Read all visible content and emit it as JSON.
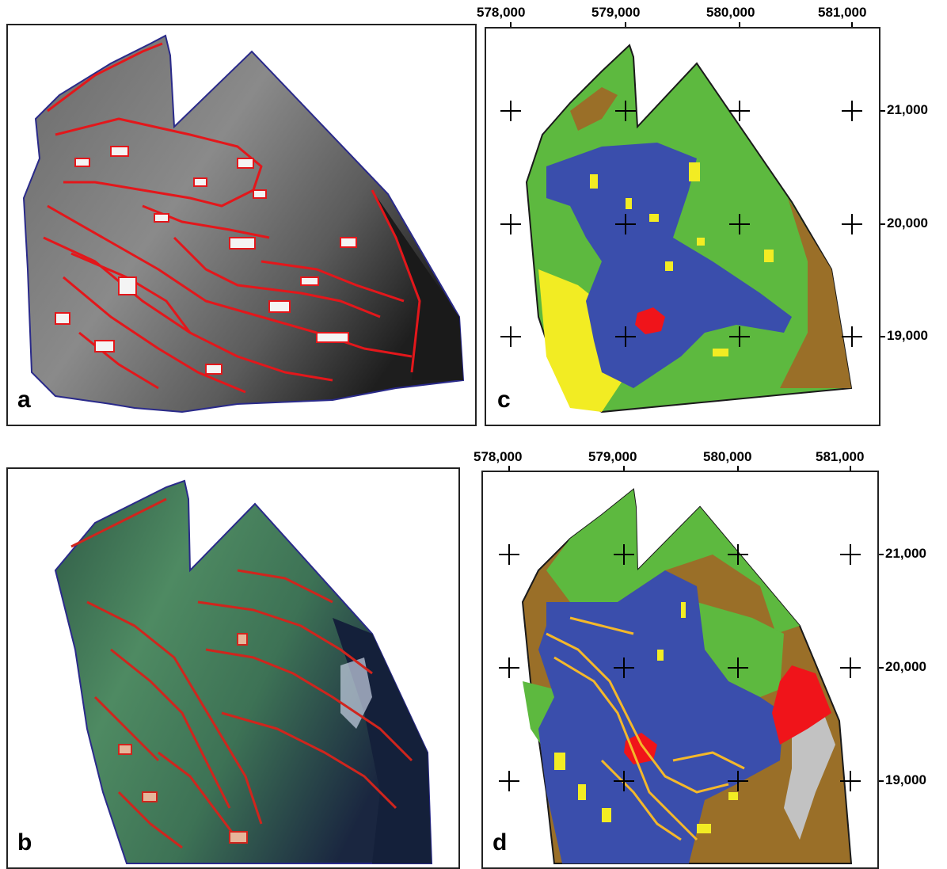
{
  "panels": {
    "a": {
      "letter": "a"
    },
    "b": {
      "letter": "b"
    },
    "c": {
      "letter": "c"
    },
    "d": {
      "letter": "d"
    }
  },
  "grid_labels": {
    "eastings": [
      "578,000",
      "579,000",
      "580,000",
      "581,000"
    ],
    "northings": [
      "21,000",
      "20,000",
      "19,000"
    ]
  },
  "colors": {
    "blue": "#3a4eac",
    "green": "#5db93f",
    "brown": "#9a6f28",
    "yellow": "#f2ec23",
    "red": "#f0141a",
    "orange": "#f4b82a",
    "grey": "#c2c2c2",
    "parcel_red": "#e3171b"
  }
}
